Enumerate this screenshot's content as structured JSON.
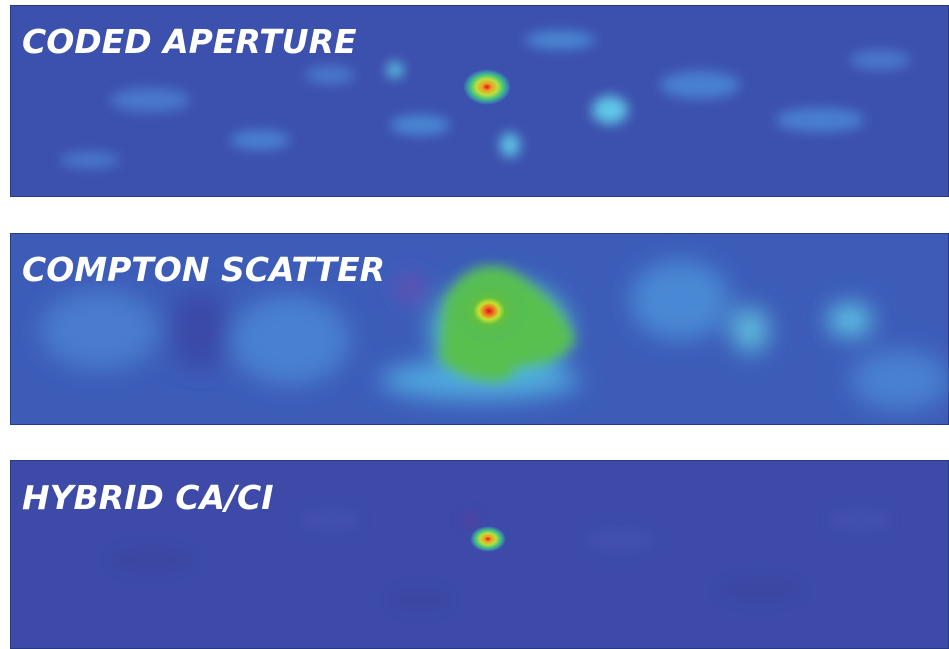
{
  "panels": [
    {
      "label": "CODED APERTURE"
    },
    {
      "label": "COMPTON SCATTER"
    },
    {
      "label": "HYBRID CA/CI"
    }
  ]
}
